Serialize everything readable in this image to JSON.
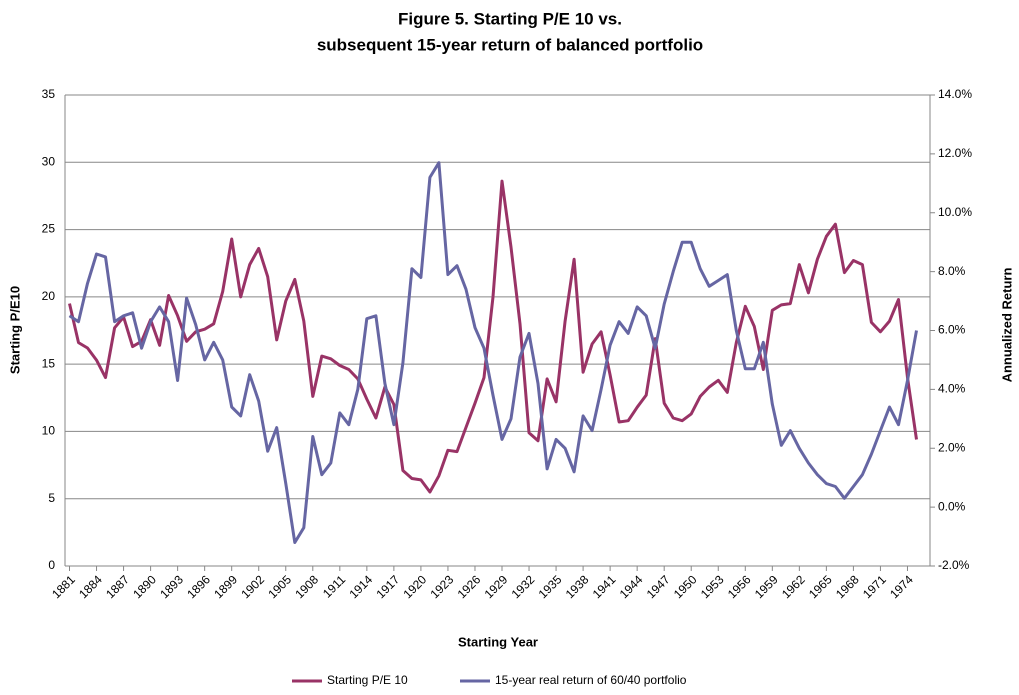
{
  "chart_data": {
    "type": "line",
    "title": [
      "Figure 5.  Starting P/E 10 vs.",
      "subsequent 15-year return of balanced portfolio"
    ],
    "x_label": "Starting Year",
    "y_label": "Starting P/E10",
    "y2_label": "Annualized Return",
    "x": [
      1881,
      1882,
      1883,
      1884,
      1885,
      1886,
      1887,
      1888,
      1889,
      1890,
      1891,
      1892,
      1893,
      1894,
      1895,
      1896,
      1897,
      1898,
      1899,
      1900,
      1901,
      1902,
      1903,
      1904,
      1905,
      1906,
      1907,
      1908,
      1909,
      1910,
      1911,
      1912,
      1913,
      1914,
      1915,
      1916,
      1917,
      1918,
      1919,
      1920,
      1921,
      1922,
      1923,
      1924,
      1925,
      1926,
      1927,
      1928,
      1929,
      1930,
      1931,
      1932,
      1933,
      1934,
      1935,
      1936,
      1937,
      1938,
      1939,
      1940,
      1941,
      1942,
      1943,
      1944,
      1945,
      1946,
      1947,
      1948,
      1949,
      1950,
      1951,
      1952,
      1953,
      1954,
      1955,
      1956,
      1957,
      1958,
      1959,
      1960,
      1961,
      1962,
      1963,
      1964,
      1965,
      1966,
      1967,
      1968,
      1969,
      1970,
      1971,
      1972,
      1973,
      1974,
      1975
    ],
    "xlim": [
      1880.5,
      1976.5
    ],
    "xticks": [
      1881,
      1884,
      1887,
      1890,
      1893,
      1896,
      1899,
      1902,
      1905,
      1908,
      1911,
      1914,
      1917,
      1920,
      1923,
      1926,
      1929,
      1932,
      1935,
      1938,
      1941,
      1944,
      1947,
      1950,
      1953,
      1956,
      1959,
      1962,
      1965,
      1968,
      1971,
      1974
    ],
    "ylim": [
      0,
      35
    ],
    "yticks": [
      0,
      5,
      10,
      15,
      20,
      25,
      30,
      35
    ],
    "y2lim": [
      -2,
      14
    ],
    "y2ticks": [
      {
        "value": -2,
        "label": "-2.0%"
      },
      {
        "value": 0,
        "label": "0.0%"
      },
      {
        "value": 2,
        "label": "2.0%"
      },
      {
        "value": 4,
        "label": "4.0%"
      },
      {
        "value": 6,
        "label": "6.0%"
      },
      {
        "value": 8,
        "label": "8.0%"
      },
      {
        "value": 10,
        "label": "10.0%"
      },
      {
        "value": 12,
        "label": "12.0%"
      },
      {
        "value": 14,
        "label": "14.0%"
      }
    ],
    "grid": true,
    "legend": "bottom",
    "series": [
      {
        "name": "Starting P/E 10",
        "color": "#993366",
        "axis": "y",
        "values": [
          19.5,
          16.6,
          16.2,
          15.3,
          14.0,
          17.7,
          18.5,
          16.3,
          16.7,
          18.3,
          16.4,
          20.1,
          18.6,
          16.7,
          17.4,
          17.6,
          18.0,
          20.4,
          24.3,
          20.0,
          22.4,
          23.6,
          21.5,
          16.8,
          19.7,
          21.3,
          18.2,
          12.6,
          15.6,
          15.4,
          14.9,
          14.6,
          13.9,
          12.4,
          11.0,
          13.3,
          12.0,
          7.1,
          6.5,
          6.4,
          5.5,
          6.7,
          8.6,
          8.5,
          10.3,
          12.1,
          14.0,
          20.0,
          28.6,
          23.7,
          18.0,
          9.9,
          9.3,
          13.9,
          12.2,
          18.2,
          22.8,
          14.4,
          16.5,
          17.4,
          14.2,
          10.7,
          10.8,
          11.8,
          12.7,
          16.9,
          12.1,
          11.0,
          10.8,
          11.3,
          12.6,
          13.3,
          13.8,
          12.9,
          16.6,
          19.3,
          17.8,
          14.6,
          19.0,
          19.4,
          19.5,
          22.4,
          20.3,
          22.8,
          24.5,
          25.4,
          21.8,
          22.7,
          22.4,
          18.1,
          17.4,
          18.2,
          19.8,
          14.0,
          9.4
        ]
      },
      {
        "name": "15-year real return of 60/40 portfolio",
        "color": "#6666a3",
        "axis": "y2",
        "values": [
          6.5,
          6.3,
          7.6,
          8.6,
          8.5,
          6.3,
          6.5,
          6.6,
          5.4,
          6.3,
          6.8,
          6.3,
          4.3,
          7.1,
          6.2,
          5.0,
          5.6,
          5.0,
          3.4,
          3.1,
          4.5,
          3.6,
          1.9,
          2.7,
          0.8,
          -1.2,
          -0.7,
          2.4,
          1.1,
          1.5,
          3.2,
          2.8,
          4.0,
          6.4,
          6.5,
          4.2,
          2.8,
          4.9,
          8.1,
          7.8,
          11.2,
          11.7,
          7.9,
          8.2,
          7.4,
          6.1,
          5.4,
          3.8,
          2.3,
          3.0,
          5.1,
          5.9,
          4.2,
          1.3,
          2.3,
          2.0,
          1.2,
          3.1,
          2.6,
          4.0,
          5.5,
          6.3,
          5.9,
          6.8,
          6.5,
          5.4,
          6.9,
          8.0,
          9.0,
          9.0,
          8.1,
          7.5,
          7.7,
          7.9,
          6.0,
          4.7,
          4.7,
          5.6,
          3.5,
          2.1,
          2.6,
          2.0,
          1.5,
          1.1,
          0.8,
          0.7,
          0.3,
          0.7,
          1.1,
          1.8,
          2.6,
          3.4,
          2.8,
          4.3,
          6.0
        ]
      }
    ]
  }
}
